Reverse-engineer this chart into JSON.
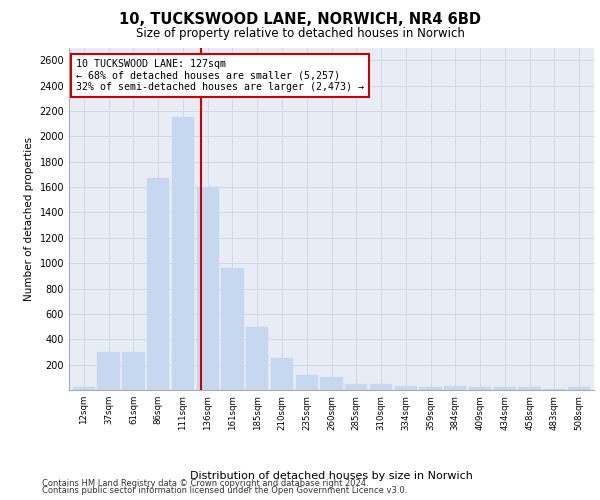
{
  "title_line1": "10, TUCKSWOOD LANE, NORWICH, NR4 6BD",
  "title_line2": "Size of property relative to detached houses in Norwich",
  "xlabel": "Distribution of detached houses by size in Norwich",
  "ylabel": "Number of detached properties",
  "bar_labels": [
    "12sqm",
    "37sqm",
    "61sqm",
    "86sqm",
    "111sqm",
    "136sqm",
    "161sqm",
    "185sqm",
    "210sqm",
    "235sqm",
    "260sqm",
    "285sqm",
    "310sqm",
    "334sqm",
    "359sqm",
    "384sqm",
    "409sqm",
    "434sqm",
    "458sqm",
    "483sqm",
    "508sqm"
  ],
  "bar_values": [
    25,
    300,
    300,
    1670,
    2150,
    1600,
    960,
    500,
    250,
    120,
    100,
    50,
    50,
    35,
    25,
    30,
    20,
    20,
    20,
    5,
    25
  ],
  "bar_color": "#c5d8ef",
  "bar_edgecolor": "#c5d8ef",
  "vline_x": 4.72,
  "vline_color": "#cc0000",
  "annotation_text": "10 TUCKSWOOD LANE: 127sqm\n← 68% of detached houses are smaller (5,257)\n32% of semi-detached houses are larger (2,473) →",
  "annotation_box_color": "#ffffff",
  "annotation_box_edgecolor": "#cc0000",
  "ylim": [
    0,
    2700
  ],
  "yticks": [
    0,
    200,
    400,
    600,
    800,
    1000,
    1200,
    1400,
    1600,
    1800,
    2000,
    2200,
    2400,
    2600
  ],
  "grid_color": "#d0d8e8",
  "bg_color": "#e8edf5",
  "footer_line1": "Contains HM Land Registry data © Crown copyright and database right 2024.",
  "footer_line2": "Contains public sector information licensed under the Open Government Licence v3.0."
}
